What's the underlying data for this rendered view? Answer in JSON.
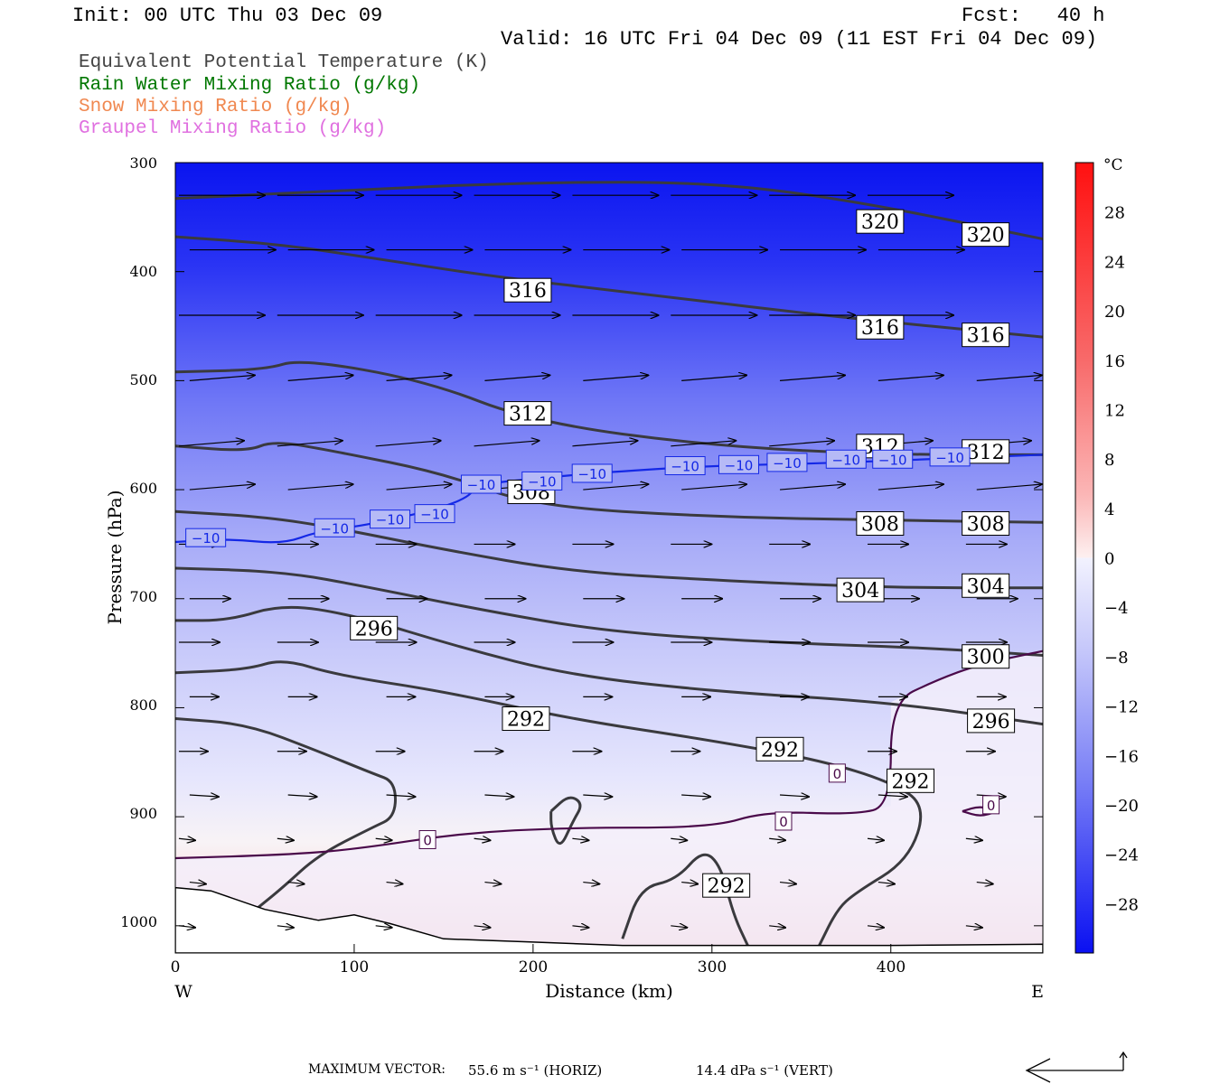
{
  "header": {
    "init": "Init: 00 UTC Thu 03 Dec 09",
    "fcst": "Fcst:   40 h",
    "valid": "Valid: 16 UTC Fri 04 Dec 09 (11 EST Fri 04 Dec 09)"
  },
  "legend": [
    {
      "label": "Equivalent Potential Temperature (K)",
      "color": "#444444"
    },
    {
      "label": "Rain Water Mixing Ratio (g/kg)",
      "color": "#007700"
    },
    {
      "label": "Snow Mixing Ratio (g/kg)",
      "color": "#f08850"
    },
    {
      "label": "Graupel Mixing Ratio (g/kg)",
      "color": "#e070e0"
    }
  ],
  "chart_data": {
    "type": "heatmap",
    "xlabel": "Distance (km)",
    "ylabel": "Pressure (hPa)",
    "xlim": [
      0,
      485
    ],
    "ylim": [
      1025,
      300
    ],
    "x_ticks": [
      0,
      100,
      200,
      300,
      400
    ],
    "y_ticks": [
      300,
      400,
      500,
      600,
      700,
      800,
      900,
      1000
    ],
    "x_left_label": "W",
    "x_right_label": "E",
    "colorbar": {
      "unit": "°C",
      "range": [
        -32,
        32
      ],
      "tick_labels": [
        "28",
        "24",
        "20",
        "16",
        "12",
        "8",
        "4",
        "0",
        "−4",
        "−8",
        "−12",
        "−16",
        "−20",
        "−24",
        "−28"
      ],
      "tick_values": [
        28,
        24,
        20,
        16,
        12,
        8,
        4,
        0,
        -4,
        -8,
        -12,
        -16,
        -20,
        -24,
        -28
      ]
    },
    "theta_e_contours": [
      {
        "label": "320",
        "points": [
          [
            0,
            333
          ],
          [
            100,
            325
          ],
          [
            200,
            318
          ],
          [
            300,
            318
          ],
          [
            380,
            335
          ],
          [
            485,
            370
          ]
        ],
        "label_pos": [
          [
            394,
            354
          ],
          [
            453,
            366
          ]
        ]
      },
      {
        "label": "316",
        "points": [
          [
            0,
            368
          ],
          [
            60,
            375
          ],
          [
            120,
            390
          ],
          [
            180,
            405
          ],
          [
            260,
            420
          ],
          [
            360,
            440
          ],
          [
            485,
            460
          ]
        ],
        "label_pos": [
          [
            197,
            417
          ],
          [
            394,
            451
          ],
          [
            453,
            458
          ]
        ]
      },
      {
        "label": "312",
        "points": [
          [
            0,
            492
          ],
          [
            50,
            490
          ],
          [
            70,
            480
          ],
          [
            140,
            500
          ],
          [
            200,
            538
          ],
          [
            300,
            560
          ],
          [
            400,
            568
          ],
          [
            485,
            568
          ]
        ],
        "label_pos": [
          [
            197,
            530
          ],
          [
            394,
            560
          ],
          [
            453,
            565
          ]
        ]
      },
      {
        "label": "308",
        "points": [
          [
            0,
            560
          ],
          [
            40,
            565
          ],
          [
            55,
            555
          ],
          [
            90,
            565
          ],
          [
            150,
            585
          ],
          [
            200,
            615
          ],
          [
            300,
            625
          ],
          [
            400,
            628
          ],
          [
            485,
            630
          ]
        ],
        "label_pos": [
          [
            199,
            602
          ],
          [
            394,
            631
          ],
          [
            453,
            631
          ]
        ]
      },
      {
        "label": "304",
        "points": [
          [
            0,
            620
          ],
          [
            50,
            625
          ],
          [
            90,
            635
          ],
          [
            150,
            655
          ],
          [
            220,
            675
          ],
          [
            300,
            683
          ],
          [
            400,
            690
          ],
          [
            485,
            690
          ]
        ],
        "label_pos": [
          [
            383,
            692
          ],
          [
            453,
            688
          ]
        ]
      },
      {
        "label": "300",
        "points": [
          [
            0,
            672
          ],
          [
            60,
            675
          ],
          [
            110,
            690
          ],
          [
            170,
            710
          ],
          [
            240,
            730
          ],
          [
            330,
            740
          ],
          [
            420,
            745
          ],
          [
            485,
            752
          ]
        ],
        "label_pos": [
          [
            453,
            753
          ]
        ]
      },
      {
        "label": "296",
        "points": [
          [
            0,
            720
          ],
          [
            30,
            720
          ],
          [
            60,
            705
          ],
          [
            100,
            715
          ],
          [
            160,
            745
          ],
          [
            220,
            770
          ],
          [
            300,
            785
          ],
          [
            400,
            795
          ],
          [
            485,
            815
          ]
        ],
        "label_pos": [
          [
            111,
            727
          ],
          [
            456,
            812
          ]
        ]
      },
      {
        "label": "292",
        "points": [
          [
            0,
            768
          ],
          [
            40,
            765
          ],
          [
            60,
            755
          ],
          [
            90,
            770
          ],
          [
            150,
            785
          ],
          [
            220,
            810
          ],
          [
            300,
            830
          ],
          [
            360,
            848
          ],
          [
            400,
            868
          ],
          [
            420,
            890
          ],
          [
            410,
            940
          ],
          [
            380,
            970
          ],
          [
            370,
            985
          ],
          [
            360,
            1018
          ]
        ],
        "label_pos": [
          [
            196,
            810
          ],
          [
            338,
            838
          ],
          [
            411,
            867
          ]
        ]
      },
      {
        "label": "292",
        "points": [
          [
            250,
            1012
          ],
          [
            260,
            965
          ],
          [
            280,
            958
          ],
          [
            295,
            930
          ],
          [
            305,
            945
          ],
          [
            312,
            990
          ],
          [
            320,
            1018
          ]
        ],
        "label_pos": [
          [
            308,
            963
          ]
        ]
      },
      {
        "label": "",
        "points": [
          [
            0,
            810
          ],
          [
            40,
            815
          ],
          [
            80,
            840
          ],
          [
            110,
            860
          ],
          [
            123,
            868
          ],
          [
            123,
            900
          ],
          [
            110,
            910
          ],
          [
            80,
            935
          ],
          [
            60,
            965
          ],
          [
            45,
            985
          ]
        ],
        "label_pos": []
      },
      {
        "label": "",
        "points": [
          [
            210,
            895
          ],
          [
            220,
            880
          ],
          [
            228,
            888
          ],
          [
            222,
            905
          ],
          [
            215,
            930
          ],
          [
            210,
            910
          ],
          [
            210,
            895
          ]
        ],
        "label_pos": []
      }
    ],
    "temperature_contours": [
      {
        "label": "−10",
        "points": [
          [
            0,
            648
          ],
          [
            30,
            645
          ],
          [
            60,
            650
          ],
          [
            80,
            638
          ],
          [
            110,
            632
          ],
          [
            160,
            612
          ],
          [
            170,
            595
          ],
          [
            200,
            590
          ],
          [
            240,
            584
          ],
          [
            300,
            578
          ],
          [
            360,
            576
          ],
          [
            420,
            572
          ],
          [
            485,
            568
          ]
        ],
        "label_pos": [
          [
            17,
            644
          ],
          [
            89,
            635
          ],
          [
            120,
            627
          ],
          [
            145,
            622
          ],
          [
            171,
            595
          ],
          [
            205,
            592
          ],
          [
            233,
            585
          ],
          [
            285,
            578
          ],
          [
            315,
            577
          ],
          [
            342,
            575
          ],
          [
            375,
            572
          ],
          [
            401,
            572
          ],
          [
            433,
            570
          ]
        ]
      },
      {
        "label": "0",
        "points": [
          [
            0,
            938
          ],
          [
            60,
            935
          ],
          [
            100,
            930
          ],
          [
            160,
            915
          ],
          [
            220,
            910
          ],
          [
            300,
            910
          ],
          [
            330,
            895
          ],
          [
            380,
            898
          ],
          [
            400,
            890
          ],
          [
            400,
            795
          ],
          [
            425,
            775
          ],
          [
            450,
            760
          ],
          [
            485,
            748
          ]
        ],
        "label_pos": [
          [
            141,
            921
          ],
          [
            340,
            904
          ],
          [
            370,
            860
          ]
        ]
      },
      {
        "label": "0",
        "points": [
          [
            440,
            895
          ],
          [
            450,
            890
          ],
          [
            460,
            895
          ],
          [
            450,
            900
          ],
          [
            440,
            895
          ]
        ],
        "label_pos": [
          [
            456,
            889
          ]
        ]
      }
    ],
    "terrain_surface": [
      [
        0,
        965
      ],
      [
        20,
        968
      ],
      [
        50,
        985
      ],
      [
        80,
        995
      ],
      [
        100,
        990
      ],
      [
        120,
        998
      ],
      [
        150,
        1012
      ],
      [
        200,
        1015
      ],
      [
        250,
        1018
      ],
      [
        300,
        1018
      ],
      [
        400,
        1018
      ],
      [
        485,
        1017
      ]
    ],
    "vectors": {
      "max_vector_label": "MAXIMUM VECTOR:",
      "max_horiz": "55.6 m s⁻¹ (HORIZ)",
      "max_vert": "14.4 dPa s⁻¹ (VERT)"
    }
  }
}
